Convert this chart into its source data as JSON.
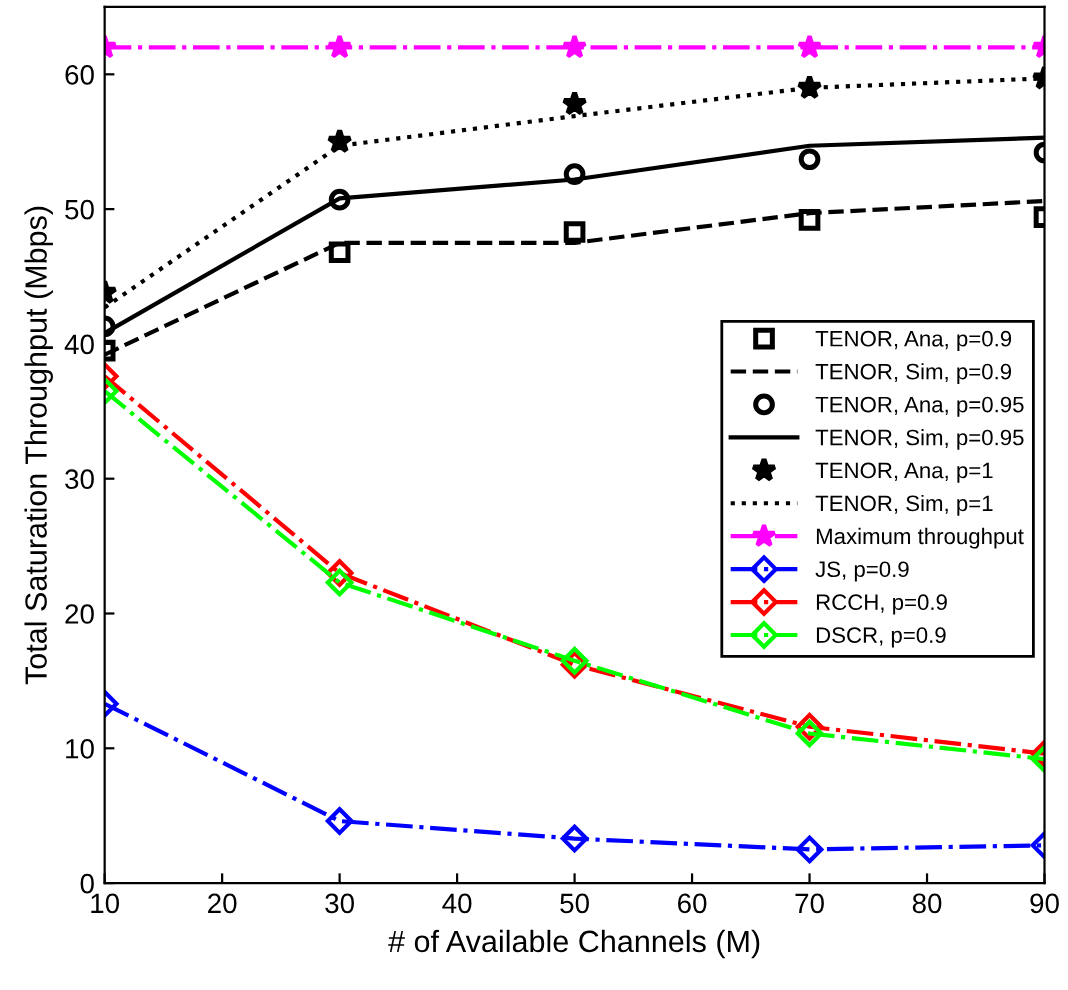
{
  "chart_data": {
    "type": "line",
    "xlabel": "# of Available Channels (M)",
    "ylabel": "Total Saturation Throughput (Mbps)",
    "x": [
      10,
      30,
      50,
      70,
      90
    ],
    "xlim": [
      10,
      90
    ],
    "xticks": [
      10,
      20,
      30,
      40,
      50,
      60,
      70,
      80,
      90
    ],
    "ylim": [
      0,
      65
    ],
    "yticks": [
      0,
      10,
      20,
      30,
      40,
      50,
      60
    ],
    "grid": false,
    "legend": "right",
    "series": [
      {
        "name": "TENOR, Ana, p=0.9",
        "type": "scatter",
        "marker": "square",
        "color": "#000000",
        "values": [
          39.5,
          46.8,
          48.3,
          49.2,
          49.4
        ]
      },
      {
        "name": "TENOR, Sim, p=0.9",
        "marker": "none",
        "line_style": "dashed",
        "color": "#000000",
        "values": [
          39.2,
          47.5,
          47.5,
          49.7,
          50.6
        ]
      },
      {
        "name": "TENOR, Ana, p=0.95",
        "type": "scatter",
        "marker": "circle",
        "color": "#000000",
        "values": [
          41.3,
          50.7,
          52.6,
          53.7,
          54.2
        ]
      },
      {
        "name": "TENOR, Sim, p=0.95",
        "marker": "none",
        "line_style": "solid",
        "color": "#000000",
        "values": [
          40.8,
          50.8,
          52.2,
          54.7,
          55.3
        ]
      },
      {
        "name": "TENOR, Ana, p=1",
        "type": "scatter",
        "marker": "star",
        "color": "#000000",
        "values": [
          43.8,
          55.0,
          57.8,
          59.0,
          59.7
        ]
      },
      {
        "name": "TENOR, Sim, p=1",
        "marker": "none",
        "line_style": "dotted",
        "color": "#000000",
        "values": [
          42.7,
          54.7,
          56.9,
          59.0,
          59.7
        ]
      },
      {
        "name": "Maximum throughput",
        "marker": "star",
        "line_style": "dashdot",
        "color": "#ff00ff",
        "values": [
          62,
          62,
          62,
          62,
          62
        ]
      },
      {
        "name": "JS, p=0.9",
        "marker": "diamond",
        "line_style": "dashdot",
        "color": "#0000ff",
        "values": [
          13.3,
          4.6,
          3.3,
          2.5,
          2.8
        ]
      },
      {
        "name": "RCCH, p=0.9",
        "marker": "diamond",
        "line_style": "dashdot",
        "color": "#ff0000",
        "values": [
          37.6,
          23.0,
          16.2,
          11.6,
          9.6
        ]
      },
      {
        "name": "DSCR, p=0.9",
        "marker": "diamond",
        "line_style": "dashdot",
        "color": "#00ff00",
        "values": [
          36.5,
          22.3,
          16.5,
          11.1,
          9.2
        ]
      }
    ]
  }
}
